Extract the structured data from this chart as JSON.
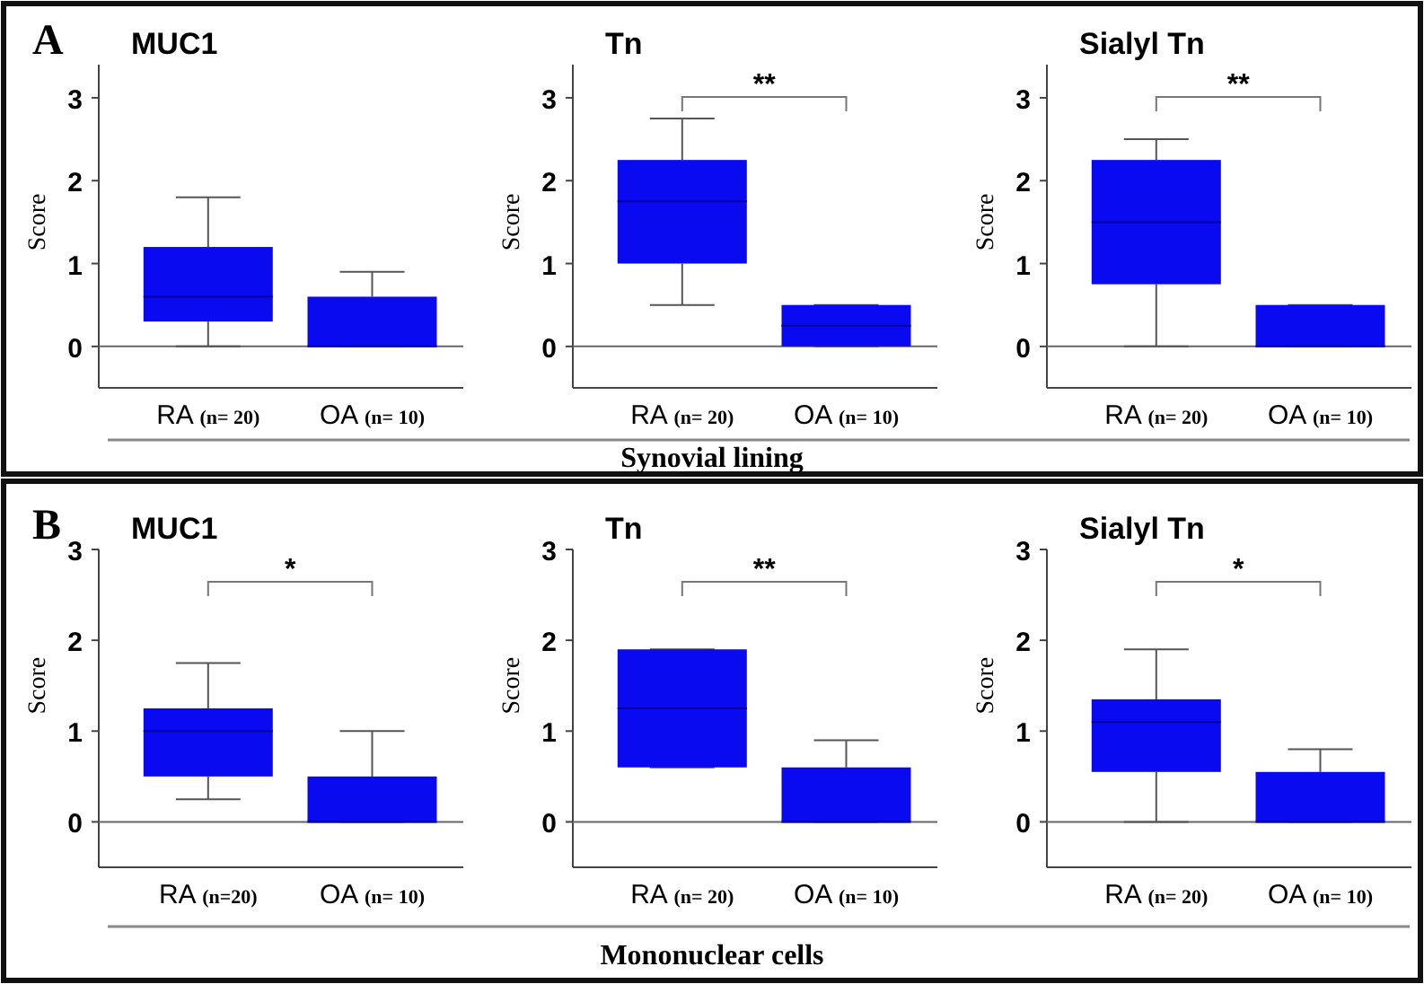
{
  "chart_data": [
    {
      "type": "box",
      "title": "MUC1",
      "ylabel": "Score",
      "categories": [
        "RA (n= 20)",
        "OA (n= 10)"
      ],
      "ylim": [
        -0.5,
        3.4
      ],
      "yticks": [
        0,
        1,
        2,
        3
      ],
      "ref_lines": [
        {
          "axis": "y",
          "value": 0
        }
      ],
      "annotations": [
        "A"
      ],
      "series": [
        {
          "color": "#0a0af0",
          "boxes": [
            {
              "low": 0,
              "q1": 0.3,
              "median": 0.6,
              "q3": 1.2,
              "high": 1.8
            },
            {
              "low": 0,
              "q1": 0,
              "median": 0,
              "q3": 0.6,
              "high": 0.9
            }
          ]
        }
      ]
    },
    {
      "type": "box",
      "title": "Tn",
      "ylabel": "Score",
      "categories": [
        "RA (n= 20)",
        "OA (n= 10)"
      ],
      "ylim": [
        -0.5,
        3.4
      ],
      "yticks": [
        0,
        1,
        2,
        3
      ],
      "ref_lines": [
        {
          "axis": "y",
          "value": 0
        }
      ],
      "annotations": [
        "**",
        "Synovial lining"
      ],
      "series": [
        {
          "color": "#0a0af0",
          "boxes": [
            {
              "low": 0.5,
              "q1": 1,
              "median": 1.75,
              "q3": 2.25,
              "high": 2.75
            },
            {
              "low": 0,
              "q1": 0,
              "median": 0.25,
              "q3": 0.5,
              "high": 0.5
            }
          ]
        }
      ]
    },
    {
      "type": "box",
      "title": "Sialyl Tn",
      "ylabel": "Score",
      "categories": [
        "RA (n= 20)",
        "OA (n= 10)"
      ],
      "ylim": [
        -0.5,
        3.4
      ],
      "yticks": [
        0,
        1,
        2,
        3
      ],
      "ref_lines": [
        {
          "axis": "y",
          "value": 0
        }
      ],
      "annotations": [
        "**"
      ],
      "series": [
        {
          "color": "#0a0af0",
          "boxes": [
            {
              "low": 0,
              "q1": 0.75,
              "median": 1.5,
              "q3": 2.25,
              "high": 2.5
            },
            {
              "low": 0,
              "q1": 0,
              "median": 0,
              "q3": 0.5,
              "high": 0.5
            }
          ]
        }
      ]
    },
    {
      "type": "box",
      "title": "MUC1",
      "ylabel": "Score",
      "categories": [
        "RA (n=20)",
        "OA (n= 10)"
      ],
      "ylim": [
        -0.5,
        3
      ],
      "yticks": [
        0,
        1,
        2,
        3
      ],
      "ref_lines": [
        {
          "axis": "y",
          "value": 0
        }
      ],
      "annotations": [
        "B",
        "*"
      ],
      "series": [
        {
          "color": "#0a0af0",
          "boxes": [
            {
              "low": 0.25,
              "q1": 0.5,
              "median": 1,
              "q3": 1.25,
              "high": 1.75
            },
            {
              "low": 0,
              "q1": 0,
              "median": 0,
              "q3": 0.5,
              "high": 1
            }
          ]
        }
      ]
    },
    {
      "type": "box",
      "title": "Tn",
      "ylabel": "Score",
      "categories": [
        "RA (n= 20)",
        "OA (n= 10)"
      ],
      "ylim": [
        -0.5,
        3
      ],
      "yticks": [
        0,
        1,
        2,
        3
      ],
      "ref_lines": [
        {
          "axis": "y",
          "value": 0
        }
      ],
      "annotations": [
        "**",
        "Mononuclear cells"
      ],
      "series": [
        {
          "color": "#0a0af0",
          "boxes": [
            {
              "low": 0.6,
              "q1": 0.6,
              "median": 1.25,
              "q3": 1.9,
              "high": 1.9
            },
            {
              "low": 0,
              "q1": 0,
              "median": 0,
              "q3": 0.6,
              "high": 0.9
            }
          ]
        }
      ]
    },
    {
      "type": "box",
      "title": "Sialyl Tn",
      "ylabel": "Score",
      "categories": [
        "RA (n= 20)",
        "OA (n= 10)"
      ],
      "ylim": [
        -0.5,
        3
      ],
      "yticks": [
        0,
        1,
        2,
        3
      ],
      "ref_lines": [
        {
          "axis": "y",
          "value": 0
        }
      ],
      "annotations": [
        "*"
      ],
      "series": [
        {
          "color": "#0a0af0",
          "boxes": [
            {
              "low": 0,
              "q1": 0.55,
              "median": 1.1,
              "q3": 1.35,
              "high": 1.9
            },
            {
              "low": 0,
              "q1": 0,
              "median": 0,
              "q3": 0.55,
              "high": 0.8
            }
          ]
        }
      ]
    }
  ]
}
